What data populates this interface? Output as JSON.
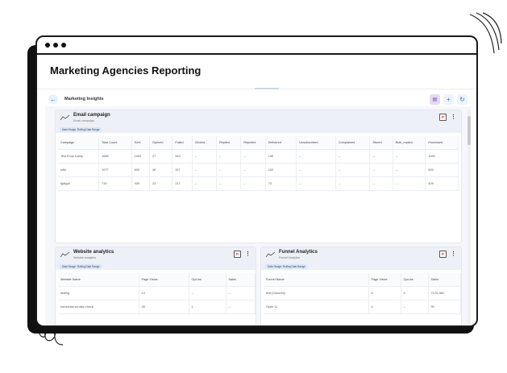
{
  "window": {
    "title": "Marketing Agencies Reporting"
  },
  "toolbar": {
    "breadcrumb": "Marketing Insights",
    "back_icon": "arrow-left-icon",
    "add_label": "+",
    "refresh_label": "↻",
    "report_label": "PDF"
  },
  "email_card": {
    "title": "Email campaign",
    "subtitle": "Email campaign",
    "tag": "Date Range: Rolling Date Range",
    "columns": [
      "Campaign",
      "Total Count",
      "Sent",
      "Opened",
      "Failed",
      "Clicked",
      "Replied",
      "Rejected",
      "Delivered",
      "Unsubscribed",
      "Complained",
      "Stored",
      "Bulk_replied",
      "Processed"
    ],
    "rows": [
      [
        "Test Empl Camp",
        "1685",
        "1000",
        "27",
        "523",
        "--",
        "--",
        "--",
        "135",
        "--",
        "--",
        "--",
        "--",
        "1000"
      ],
      [
        "sdfs",
        "1077",
        "600",
        "46",
        "327",
        "--",
        "--",
        "--",
        "102",
        "--",
        "--",
        "--",
        "--",
        "600"
      ],
      [
        "fgdfgdf",
        "719",
        "409",
        "23",
        "217",
        "--",
        "--",
        "--",
        "73",
        "--",
        "--",
        "--",
        "--",
        "409"
      ]
    ]
  },
  "website_card": {
    "title": "Website analytics",
    "subtitle": "Website analytics",
    "tag": "Date Range: Rolling Date Range",
    "columns": [
      "Website Name",
      "Page Views",
      "Opt-ins",
      "Sales"
    ],
    "rows": [
      [
        "testing",
        "13",
        "--",
        "--"
      ],
      [
        "horizontal scrollar check",
        "28",
        "1",
        "--"
      ]
    ]
  },
  "funnel_card": {
    "title": "Funnel Analytics",
    "subtitle": "Funnel Analytics",
    "tag": "Date Range: Rolling Date Range",
    "columns": [
      "Funnel Name",
      "Page Views",
      "Opt-ins",
      "Sales"
    ],
    "rows": [
      [
        "test (Clone46)",
        "6",
        "3",
        "70,91,561"
      ],
      [
        "Optin 11",
        "4",
        "--",
        "90"
      ]
    ]
  },
  "colors": {
    "accent": "#2f6fd8",
    "card_header": "#eef0f7",
    "frame": "#1a1a1a"
  }
}
